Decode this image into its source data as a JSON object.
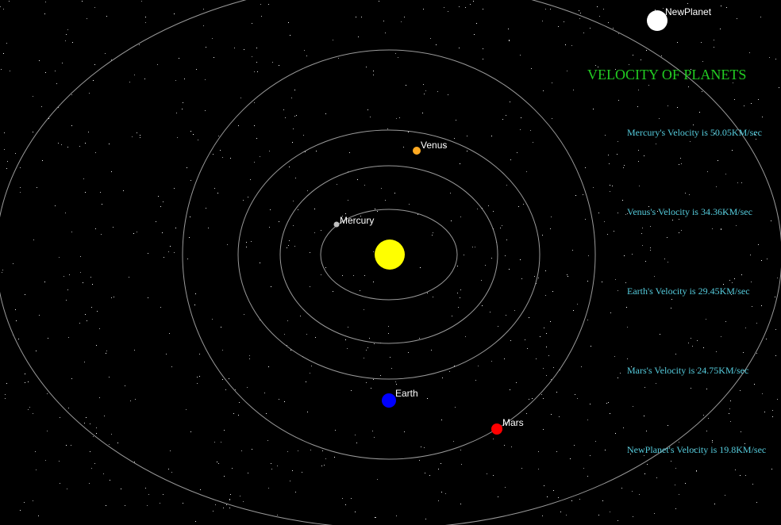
{
  "panel": {
    "title": "VELOCITY OF PLANETS",
    "velocities": [
      "Mercury's Velocity is 50.05KM/sec",
      "Venus's Velocity is 34.36KM/sec",
      "Earth's Velocity is 29.45KM/sec",
      "Mars's Velocity is 24.75KM/sec",
      "NewPlanet's Velocity is 19.8KM/sec"
    ]
  },
  "planets": {
    "mercury": {
      "label": "Mercury"
    },
    "venus": {
      "label": "Venus"
    },
    "earth": {
      "label": "Earth"
    },
    "mars": {
      "label": "Mars"
    },
    "newplanet": {
      "label": "NewPlanet"
    }
  },
  "colors": {
    "background": "#000000",
    "sun": "#ffff00",
    "mercury": "#c0c0c0",
    "venus": "#ffaa22",
    "earth": "#0000ff",
    "mars": "#ff0000",
    "newplanet": "#ffffff",
    "orbit": "#9a9a9a",
    "title": "#22cc22",
    "velocity_text": "#55ccdd"
  }
}
